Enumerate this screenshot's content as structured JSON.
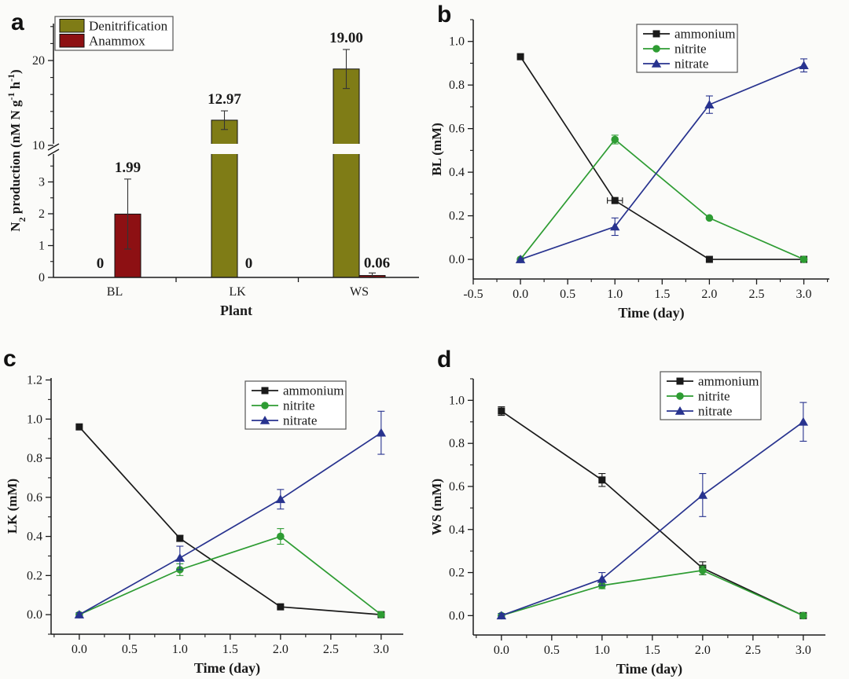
{
  "figure": {
    "background": "#fbfbf9",
    "text_color": "#1a1a1a",
    "panel_letters": [
      "a",
      "b",
      "c",
      "d"
    ]
  },
  "chart_data": [
    {
      "id": "a",
      "type": "bar",
      "panel_label": "a",
      "xlabel": "Plant",
      "ylabel_plain": "N2 production (nM N g-1 h-1)",
      "ylabel_parts": [
        {
          "t": "N"
        },
        {
          "t": "2",
          "sub": true
        },
        {
          "t": " production (nM N g"
        },
        {
          "t": "-1",
          "sup": true
        },
        {
          "t": " h"
        },
        {
          "t": "-1",
          "sup": true
        },
        {
          "t": ")"
        }
      ],
      "categories": [
        "BL",
        "LK",
        "WS"
      ],
      "series": [
        {
          "name": "Denitrification",
          "color": "#7f7c16",
          "values": [
            0,
            12.97,
            19.0
          ],
          "errors": [
            0,
            1.1,
            2.3
          ],
          "value_labels": [
            "0",
            "12.97",
            "19.00"
          ]
        },
        {
          "name": "Anammox",
          "color": "#8d1013",
          "values": [
            1.99,
            0,
            0.06
          ],
          "errors": [
            1.1,
            0,
            0.08
          ],
          "value_labels": [
            "1.99",
            "0",
            "0.06"
          ]
        }
      ],
      "axis_break": {
        "between": [
          3.5,
          10
        ]
      },
      "yticks_lower": {
        "major": [
          0,
          1,
          2,
          3
        ],
        "minor": [
          0.5,
          1.5,
          2.5,
          3.5
        ]
      },
      "yticks_upper": {
        "major": [
          10,
          20
        ],
        "minor": [
          12,
          14,
          16,
          18,
          22,
          24
        ]
      },
      "legend_position": "top-left"
    },
    {
      "id": "b",
      "type": "line",
      "panel_label": "b",
      "xlabel": "Time (day)",
      "ylabel": "BL (mM)",
      "x": [
        0,
        1,
        2,
        3
      ],
      "series": [
        {
          "name": "ammonium",
          "marker": "square",
          "color": "#1a1a1a",
          "values": [
            0.93,
            0.27,
            0.0,
            0.0
          ],
          "yerr": [
            0,
            0,
            0,
            0
          ],
          "xerr": [
            0,
            0.08,
            0,
            0
          ]
        },
        {
          "name": "nitrite",
          "marker": "circle",
          "color": "#2e9c33",
          "values": [
            0.0,
            0.55,
            0.19,
            0.0
          ],
          "yerr": [
            0,
            0.02,
            0,
            0
          ],
          "xerr": [
            0,
            0,
            0,
            0
          ]
        },
        {
          "name": "nitrate",
          "marker": "triangle",
          "color": "#28338f",
          "values": [
            0.0,
            0.15,
            0.71,
            0.89
          ],
          "yerr": [
            0,
            0.04,
            0.04,
            0.03
          ],
          "xerr": [
            0,
            0,
            0,
            0
          ]
        }
      ],
      "xlim": [
        -0.5,
        3.27
      ],
      "ylim": [
        -0.09,
        1.1
      ],
      "xticks": [
        -0.5,
        0,
        0.5,
        1,
        1.5,
        2,
        2.5,
        3
      ],
      "yticks": [
        0,
        0.2,
        0.4,
        0.6,
        0.8,
        1.0
      ],
      "tick_decimals": 1,
      "legend_position": "top-right",
      "grid": false
    },
    {
      "id": "c",
      "type": "line",
      "panel_label": "c",
      "xlabel": "Time (day)",
      "ylabel": "LK (mM)",
      "x": [
        0,
        1,
        2,
        3
      ],
      "series": [
        {
          "name": "ammonium",
          "marker": "square",
          "color": "#1a1a1a",
          "values": [
            0.96,
            0.39,
            0.04,
            0.0
          ],
          "yerr": [
            0,
            0.015,
            0,
            0
          ],
          "xerr": [
            0,
            0,
            0,
            0
          ]
        },
        {
          "name": "nitrite",
          "marker": "circle",
          "color": "#2e9c33",
          "values": [
            0.0,
            0.23,
            0.4,
            0.0
          ],
          "yerr": [
            0,
            0.03,
            0.04,
            0
          ],
          "xerr": [
            0,
            0,
            0,
            0
          ]
        },
        {
          "name": "nitrate",
          "marker": "triangle",
          "color": "#28338f",
          "values": [
            0.0,
            0.29,
            0.59,
            0.93
          ],
          "yerr": [
            0.01,
            0.06,
            0.05,
            0.11
          ],
          "xerr": [
            0,
            0,
            0,
            0
          ]
        }
      ],
      "xlim": [
        -0.28,
        3.22
      ],
      "ylim": [
        -0.1,
        1.21
      ],
      "xticks": [
        0,
        0.5,
        1,
        1.5,
        2,
        2.5,
        3
      ],
      "yticks": [
        0,
        0.2,
        0.4,
        0.6,
        0.8,
        1.0,
        1.2
      ],
      "tick_decimals": 1,
      "legend_position": "top-right",
      "grid": false
    },
    {
      "id": "d",
      "type": "line",
      "panel_label": "d",
      "xlabel": "Time (day)",
      "ylabel": "WS (mM)",
      "x": [
        0,
        1,
        2,
        3
      ],
      "series": [
        {
          "name": "ammonium",
          "marker": "square",
          "color": "#1a1a1a",
          "values": [
            0.95,
            0.63,
            0.22,
            0.0
          ],
          "yerr": [
            0.02,
            0.03,
            0.03,
            0
          ],
          "xerr": [
            0,
            0,
            0,
            0
          ]
        },
        {
          "name": "nitrite",
          "marker": "circle",
          "color": "#2e9c33",
          "values": [
            0.0,
            0.14,
            0.21,
            0.0
          ],
          "yerr": [
            0,
            0.015,
            0.02,
            0
          ],
          "xerr": [
            0,
            0,
            0,
            0
          ]
        },
        {
          "name": "nitrate",
          "marker": "triangle",
          "color": "#28338f",
          "values": [
            0.0,
            0.17,
            0.56,
            0.9
          ],
          "yerr": [
            0.01,
            0.03,
            0.1,
            0.09
          ],
          "xerr": [
            0,
            0,
            0,
            0
          ]
        }
      ],
      "xlim": [
        -0.28,
        3.22
      ],
      "ylim": [
        -0.09,
        1.1
      ],
      "xticks": [
        0,
        0.5,
        1,
        1.5,
        2,
        2.5,
        3
      ],
      "yticks": [
        0,
        0.2,
        0.4,
        0.6,
        0.8,
        1.0
      ],
      "tick_decimals": 1,
      "legend_position": "top-right",
      "grid": false
    }
  ]
}
